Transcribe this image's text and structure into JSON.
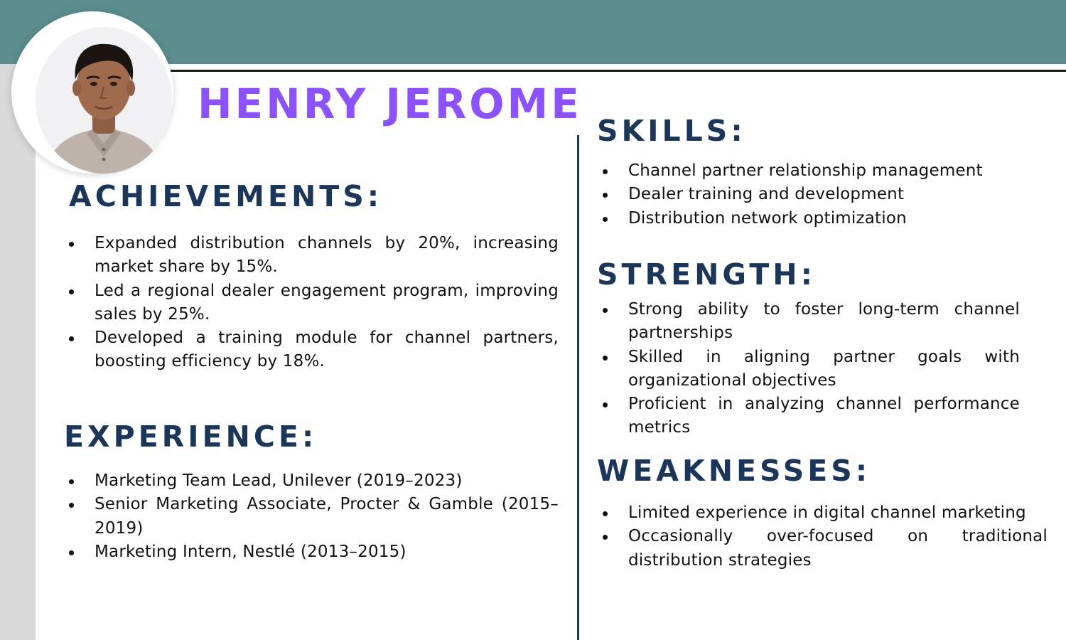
{
  "name": "HENRY JEROME",
  "achievements": {
    "title": "ACHIEVEMENTS:",
    "items": [
      "Expanded distribution channels by 20%, increasing market share by 15%.",
      "Led a regional dealer engagement program, improving sales by 25%.",
      "Developed a training module for channel partners, boosting efficiency by 18%."
    ]
  },
  "experience": {
    "title": "EXPERIENCE:",
    "items": [
      "Marketing Team Lead, Unilever (2019–2023)",
      "Senior Marketing Associate, Procter & Gamble (2015–2019)",
      "Marketing Intern, Nestlé (2013–2015)"
    ]
  },
  "skills": {
    "title": "SKILLS:",
    "items": [
      "Channel partner relationship management",
      "Dealer training and development",
      "Distribution network optimization"
    ]
  },
  "strength": {
    "title": "STRENGTH:",
    "items": [
      "Strong ability to foster long-term channel partnerships",
      "Skilled in aligning partner goals with organizational objectives",
      "Proficient in analyzing channel performance metrics"
    ]
  },
  "weaknesses": {
    "title": "WEAKNESSES:",
    "items": [
      "Limited experience in digital channel marketing",
      "Occasionally over-focused on traditional distribution strategies"
    ]
  },
  "colors": {
    "header_band": "#5b8d8e",
    "name_accent": "#8c52ff",
    "heading_navy": "#1b3659",
    "side_bar_gray": "#d9d9d9"
  }
}
